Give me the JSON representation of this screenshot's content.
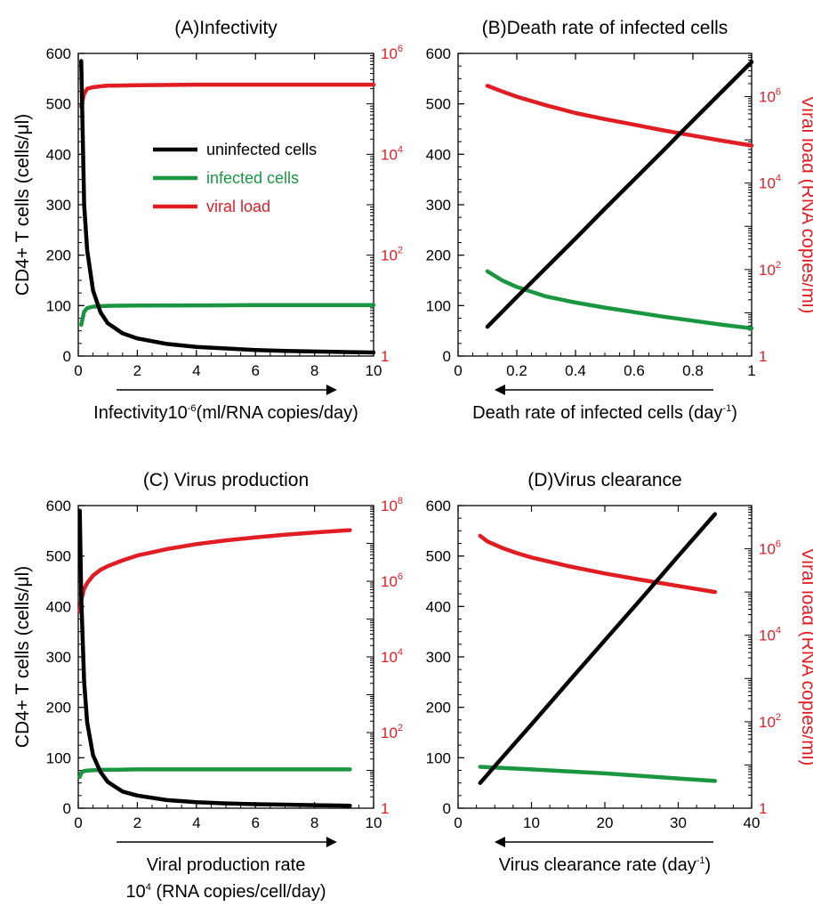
{
  "colors": {
    "uninfected": "#000000",
    "infected": "#1a9641",
    "viral": "#e11d24",
    "right_axis": "#e11d24"
  },
  "legend": [
    {
      "label": "uninfected cells",
      "color": "#000000"
    },
    {
      "label": "infected cells",
      "color": "#1a9641"
    },
    {
      "label": "viral load",
      "color": "#e11d24"
    }
  ],
  "chart_data": [
    {
      "id": "A",
      "type": "line",
      "title": "(A)Infectivity",
      "xlabel": "Infectivity10-6(ml/RNA copies/day)",
      "xlabel_parts": {
        "main": "Infectivity10",
        "sup": "-6",
        "rest": "(ml/RNA copies/day)"
      },
      "ylabel_left": "CD4+ T cells (cells/μl)",
      "ylabel_right": "",
      "xlim": [
        0,
        10
      ],
      "xticks": [
        "0",
        "2",
        "4",
        "6",
        "8",
        "10"
      ],
      "ylim_left": [
        0,
        600
      ],
      "yticks_left": [
        "0",
        "100",
        "200",
        "300",
        "400",
        "500",
        "600"
      ],
      "yscale_right": "log",
      "ylim_right_log10": [
        0,
        6
      ],
      "yticks_right": [
        {
          "base": "1",
          "exp": ""
        },
        {
          "base": "10",
          "exp": "2"
        },
        {
          "base": "10",
          "exp": "4"
        },
        {
          "base": "10",
          "exp": "6"
        }
      ],
      "arrow_direction": "right",
      "legend_position": "middle-right",
      "series": [
        {
          "name": "uninfected cells",
          "axis": "left",
          "x": [
            0.1,
            0.2,
            0.3,
            0.5,
            0.75,
            1,
            1.5,
            2,
            3,
            4,
            5,
            6,
            7,
            8,
            9,
            10
          ],
          "y": [
            585,
            300,
            210,
            130,
            87,
            65,
            45,
            35,
            24,
            18,
            15,
            12,
            10,
            9,
            8,
            7
          ]
        },
        {
          "name": "infected cells",
          "axis": "left",
          "x": [
            0.1,
            0.2,
            0.3,
            0.5,
            0.8,
            1,
            2,
            4,
            6,
            8,
            10
          ],
          "y": [
            62,
            88,
            95,
            98,
            99,
            99.5,
            100,
            100.5,
            101,
            101,
            101
          ]
        },
        {
          "name": "viral load",
          "axis": "right",
          "x": [
            0.1,
            0.2,
            0.3,
            0.5,
            0.8,
            1,
            2,
            4,
            6,
            8,
            10
          ],
          "y_log10": [
            4.95,
            5.2,
            5.3,
            5.33,
            5.35,
            5.36,
            5.37,
            5.38,
            5.38,
            5.38,
            5.38
          ]
        }
      ]
    },
    {
      "id": "B",
      "type": "line",
      "title": "(B)Death rate of infected cells",
      "xlabel": "Death rate of infected cells (day-1)",
      "xlabel_parts": {
        "main": "Death rate of infected cells (day",
        "sup": "-1",
        "rest": ")"
      },
      "ylabel_left": "",
      "ylabel_right": "Viral load (RNA copies/ml)",
      "xlim": [
        0,
        1
      ],
      "xticks": [
        "0",
        "0.2",
        "0.4",
        "0.6",
        "0.8",
        "1"
      ],
      "ylim_left": [
        0,
        600
      ],
      "yticks_left": [
        "0",
        "100",
        "200",
        "300",
        "400",
        "500",
        "600"
      ],
      "yscale_right": "log",
      "ylim_right_log10": [
        0,
        7
      ],
      "yticks_right": [
        {
          "base": "1",
          "exp": ""
        },
        {
          "base": "10",
          "exp": "2"
        },
        {
          "base": "10",
          "exp": "4"
        },
        {
          "base": "10",
          "exp": "6"
        }
      ],
      "arrow_direction": "left",
      "series": [
        {
          "name": "uninfected cells",
          "axis": "left",
          "x": [
            0.1,
            0.2,
            0.3,
            0.4,
            0.5,
            0.6,
            0.7,
            0.8,
            0.9,
            1.0
          ],
          "y": [
            58,
            117,
            175,
            233,
            292,
            350,
            408,
            467,
            525,
            583
          ]
        },
        {
          "name": "infected cells",
          "axis": "left",
          "x": [
            0.1,
            0.15,
            0.2,
            0.3,
            0.4,
            0.5,
            0.6,
            0.7,
            0.8,
            0.9,
            1.0
          ],
          "y": [
            168,
            150,
            137,
            118,
            106,
            96,
            87,
            78,
            70,
            62,
            55
          ]
        },
        {
          "name": "viral load",
          "axis": "right",
          "x": [
            0.1,
            0.15,
            0.2,
            0.3,
            0.4,
            0.5,
            0.6,
            0.7,
            0.8,
            0.9,
            1.0
          ],
          "y_log10": [
            6.25,
            6.12,
            6.0,
            5.8,
            5.62,
            5.48,
            5.35,
            5.22,
            5.1,
            4.98,
            4.87
          ]
        }
      ]
    },
    {
      "id": "C",
      "type": "line",
      "title": "(C) Virus production",
      "xlabel": "Viral production rate 104 (RNA copies/cell/day)",
      "xlabel_line1": "Viral production rate",
      "xlabel_line2_parts": {
        "main": "10",
        "sup": "4",
        "rest": " (RNA copies/cell/day)"
      },
      "ylabel_left": "CD4+ T cells (cells/μl)",
      "ylabel_right": "",
      "xlim": [
        0,
        10
      ],
      "xticks": [
        "0",
        "2",
        "4",
        "6",
        "8",
        "10"
      ],
      "ylim_left": [
        0,
        600
      ],
      "yticks_left": [
        "0",
        "100",
        "200",
        "300",
        "400",
        "500",
        "600"
      ],
      "yscale_right": "log",
      "ylim_right_log10": [
        0,
        8
      ],
      "yticks_right": [
        {
          "base": "1",
          "exp": ""
        },
        {
          "base": "10",
          "exp": "2"
        },
        {
          "base": "10",
          "exp": "4"
        },
        {
          "base": "10",
          "exp": "6"
        },
        {
          "base": "10",
          "exp": "8"
        }
      ],
      "arrow_direction": "right",
      "series": [
        {
          "name": "uninfected cells",
          "axis": "left",
          "x": [
            0.05,
            0.1,
            0.2,
            0.3,
            0.5,
            0.75,
            1,
            1.5,
            2,
            3,
            4,
            5,
            6,
            7,
            8,
            9.2
          ],
          "y": [
            590,
            420,
            250,
            170,
            105,
            72,
            52,
            33,
            25,
            16,
            12,
            9.5,
            8,
            7,
            6,
            5
          ]
        },
        {
          "name": "infected cells",
          "axis": "left",
          "x": [
            0.05,
            0.1,
            0.2,
            0.4,
            0.8,
            1,
            2,
            4,
            6,
            8,
            9.2
          ],
          "y": [
            62,
            70,
            74,
            75,
            76,
            76,
            77,
            77,
            77,
            77,
            77
          ]
        },
        {
          "name": "viral load",
          "axis": "right",
          "x": [
            0.05,
            0.1,
            0.2,
            0.3,
            0.5,
            0.75,
            1,
            1.5,
            2,
            3,
            4,
            5,
            6,
            7,
            8,
            9.2
          ],
          "y_log10": [
            5.2,
            5.5,
            5.8,
            5.95,
            6.15,
            6.3,
            6.4,
            6.55,
            6.68,
            6.85,
            6.98,
            7.08,
            7.16,
            7.23,
            7.29,
            7.35
          ]
        }
      ]
    },
    {
      "id": "D",
      "type": "line",
      "title": "(D)Virus clearance",
      "xlabel": "Virus clearance rate (day-1)",
      "xlabel_parts": {
        "main": "Virus clearance rate (day",
        "sup": "-1",
        "rest": ")"
      },
      "ylabel_left": "",
      "ylabel_right": "Viral load (RNA copies/ml)",
      "xlim": [
        0,
        40
      ],
      "xticks": [
        "0",
        "10",
        "20",
        "30",
        "40"
      ],
      "ylim_left": [
        0,
        600
      ],
      "yticks_left": [
        "0",
        "100",
        "200",
        "300",
        "400",
        "500",
        "600"
      ],
      "yscale_right": "log",
      "ylim_right_log10": [
        0,
        7
      ],
      "yticks_right": [
        {
          "base": "1",
          "exp": ""
        },
        {
          "base": "10",
          "exp": "2"
        },
        {
          "base": "10",
          "exp": "4"
        },
        {
          "base": "10",
          "exp": "6"
        }
      ],
      "arrow_direction": "left",
      "series": [
        {
          "name": "uninfected cells",
          "axis": "left",
          "x": [
            3,
            6,
            10,
            15,
            20,
            25,
            30,
            35
          ],
          "y": [
            50,
            100,
            166,
            250,
            333,
            416,
            500,
            583
          ]
        },
        {
          "name": "infected cells",
          "axis": "left",
          "x": [
            3,
            6,
            10,
            15,
            20,
            25,
            30,
            35
          ],
          "y": [
            82,
            80,
            77,
            73,
            69,
            64,
            59,
            54
          ]
        },
        {
          "name": "viral load",
          "axis": "right",
          "x": [
            3,
            4,
            6,
            8,
            10,
            15,
            20,
            25,
            30,
            35
          ],
          "y_log10": [
            6.3,
            6.17,
            6.02,
            5.9,
            5.8,
            5.6,
            5.43,
            5.28,
            5.14,
            5.0
          ]
        }
      ]
    }
  ]
}
